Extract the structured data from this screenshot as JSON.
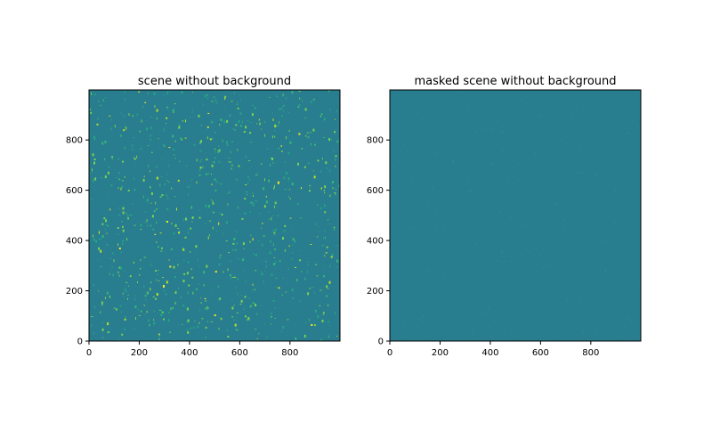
{
  "chart_data": [
    {
      "type": "heatmap",
      "title": "scene without background",
      "xlim": [
        0,
        999
      ],
      "ylim": [
        0,
        999
      ],
      "xticks": [
        0,
        200,
        400,
        600,
        800
      ],
      "yticks": [
        0,
        200,
        400,
        600,
        800
      ],
      "xtick_labels": [
        "0",
        "200",
        "400",
        "600",
        "800"
      ],
      "ytick_labels": [
        "0",
        "200",
        "400",
        "600",
        "800"
      ],
      "colormap": "viridis",
      "background_color": "#287d8e",
      "grid": false,
      "description_level": "sparse bright point sources on uniform background"
    },
    {
      "type": "heatmap",
      "title": "masked scene without background",
      "xlim": [
        0,
        999
      ],
      "ylim": [
        0,
        999
      ],
      "xticks": [
        0,
        200,
        400,
        600,
        800
      ],
      "yticks": [
        0,
        200,
        400,
        600,
        800
      ],
      "xtick_labels": [
        "0",
        "200",
        "400",
        "600",
        "800"
      ],
      "ytick_labels": [
        "0",
        "200",
        "400",
        "600",
        "800"
      ],
      "colormap": "viridis",
      "background_color": "#287d8e",
      "grid": false
    }
  ]
}
